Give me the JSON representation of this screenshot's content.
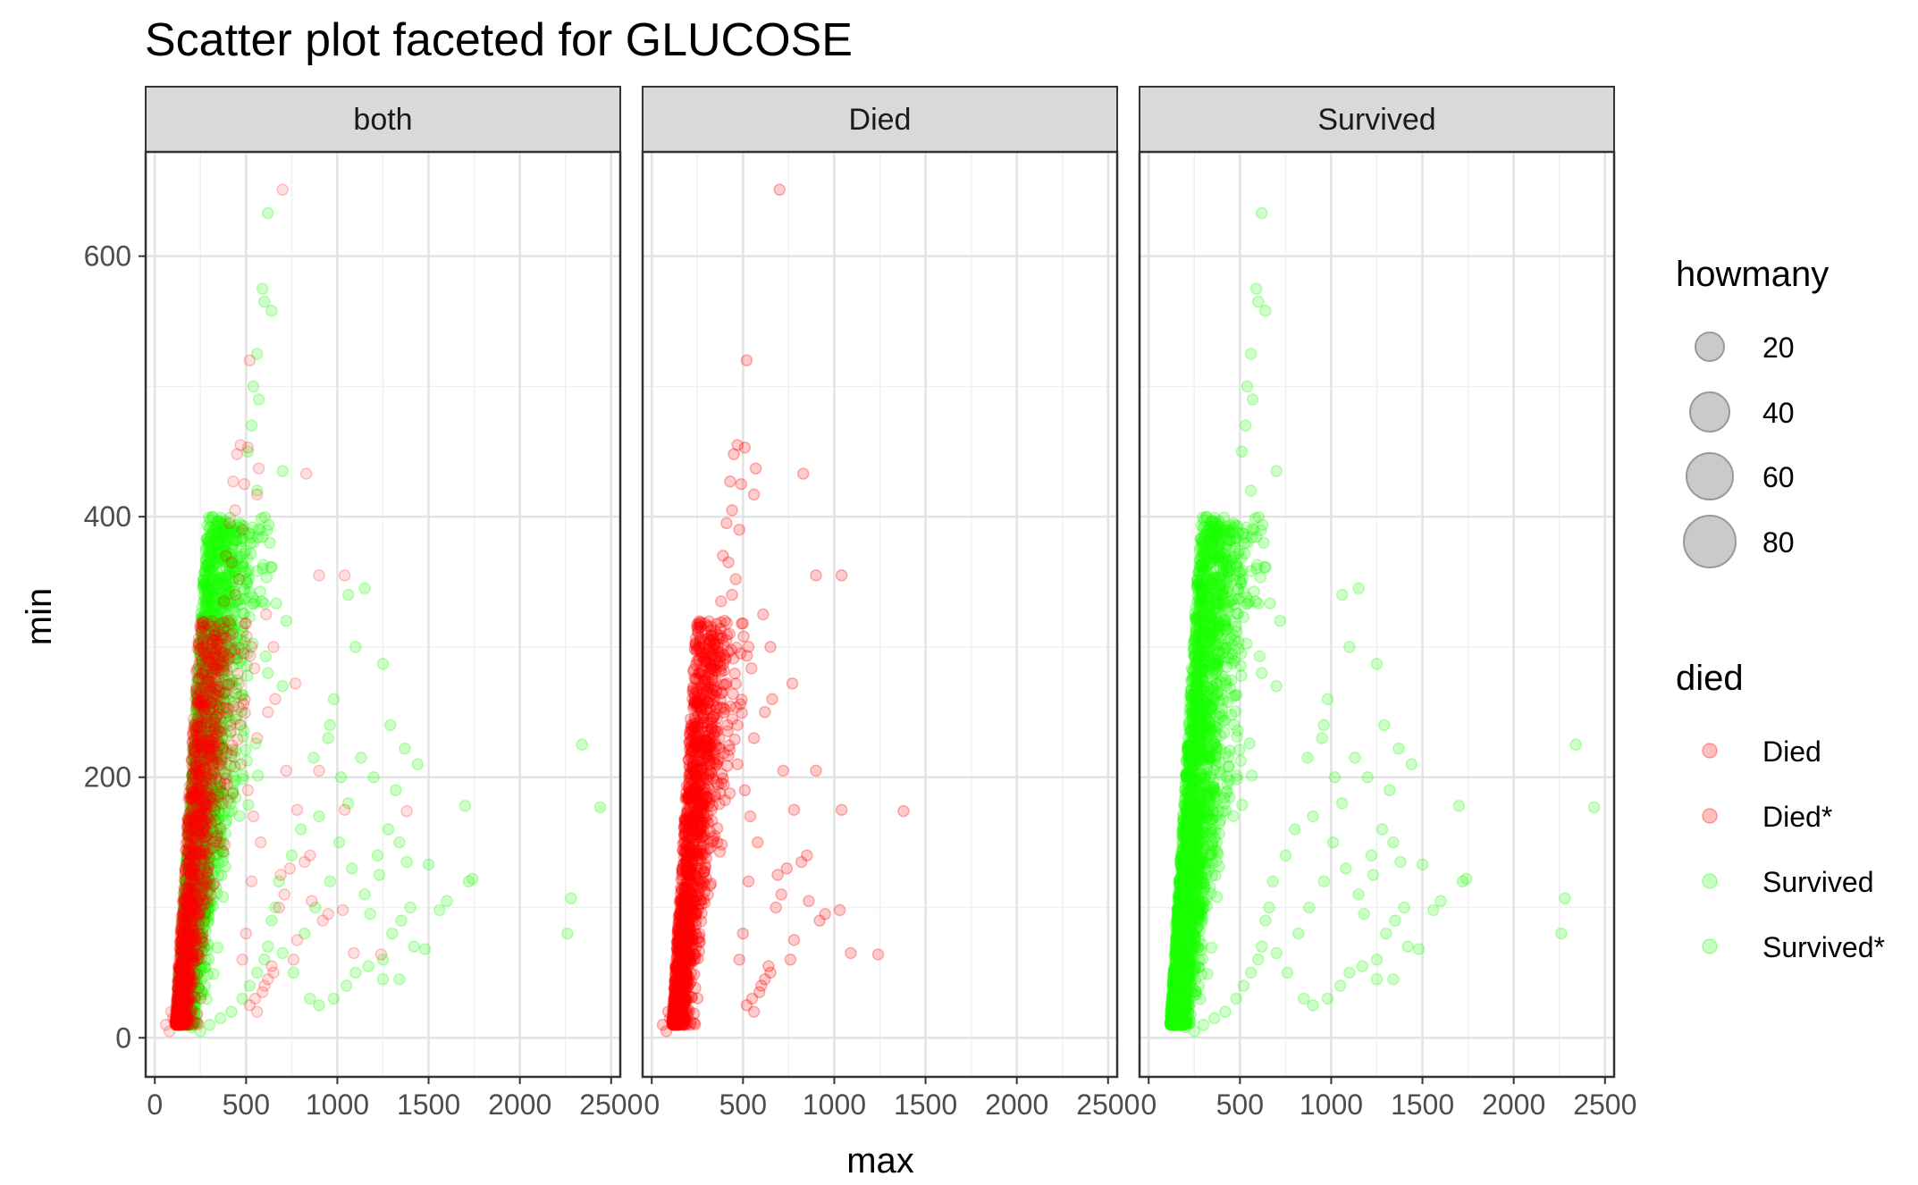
{
  "chart_data": {
    "type": "scatter",
    "title": "Scatter plot faceted for GLUCOSE",
    "xlabel": "max",
    "ylabel": "min",
    "xlim": [
      -50,
      2550
    ],
    "ylim": [
      -30,
      680
    ],
    "x_ticks": [
      0,
      500,
      1000,
      1500,
      2000,
      2500
    ],
    "x_tick_labels": [
      "0",
      "500",
      "1000",
      "1500",
      "2000",
      "2500"
    ],
    "y_ticks": [
      0,
      200,
      400,
      600
    ],
    "y_tick_labels": [
      "0",
      "200",
      "400",
      "600"
    ],
    "grid": true,
    "facets": [
      "both",
      "Died",
      "Survived"
    ],
    "legend_size": {
      "title": "howmany",
      "position": "right",
      "entries": [
        {
          "label": "20",
          "value": 20
        },
        {
          "label": "40",
          "value": 40
        },
        {
          "label": "60",
          "value": 60
        },
        {
          "label": "80",
          "value": 80
        }
      ]
    },
    "legend_color": {
      "title": "died",
      "position": "right",
      "entries": [
        {
          "label": "Died",
          "color": "#ff0000"
        },
        {
          "label": "Died*",
          "color": "#ff0000"
        },
        {
          "label": "Survived",
          "color": "#1aff00"
        },
        {
          "label": "Survived*",
          "color": "#1aff00"
        }
      ]
    },
    "series": [
      {
        "name": "Died",
        "color": "#ff0000",
        "points": [
          [
            700,
            651
          ],
          [
            520,
            520
          ],
          [
            470,
            455
          ],
          [
            510,
            453
          ],
          [
            450,
            448
          ],
          [
            570,
            437
          ],
          [
            830,
            433
          ],
          [
            430,
            427
          ],
          [
            490,
            425
          ],
          [
            560,
            417
          ],
          [
            440,
            405
          ],
          [
            410,
            395
          ],
          [
            480,
            390
          ],
          [
            900,
            355
          ],
          [
            1040,
            355
          ],
          [
            390,
            370
          ],
          [
            420,
            365
          ],
          [
            460,
            352
          ],
          [
            610,
            325
          ],
          [
            650,
            300
          ],
          [
            530,
            300
          ],
          [
            440,
            340
          ],
          [
            380,
            335
          ],
          [
            400,
            320
          ],
          [
            770,
            272
          ],
          [
            660,
            260
          ],
          [
            720,
            205
          ],
          [
            780,
            175
          ],
          [
            1040,
            175
          ],
          [
            1380,
            174
          ],
          [
            900,
            205
          ],
          [
            620,
            250
          ],
          [
            560,
            230
          ],
          [
            470,
            240
          ],
          [
            850,
            140
          ],
          [
            820,
            135
          ],
          [
            740,
            130
          ],
          [
            690,
            125
          ],
          [
            710,
            110
          ],
          [
            680,
            100
          ],
          [
            860,
            105
          ],
          [
            950,
            95
          ],
          [
            1030,
            98
          ],
          [
            920,
            90
          ],
          [
            780,
            75
          ],
          [
            760,
            60
          ],
          [
            1090,
            65
          ],
          [
            1240,
            64
          ],
          [
            640,
            55
          ],
          [
            650,
            50
          ],
          [
            600,
            40
          ],
          [
            590,
            35
          ],
          [
            550,
            30
          ],
          [
            520,
            25
          ],
          [
            560,
            20
          ],
          [
            620,
            45
          ],
          [
            480,
            60
          ],
          [
            500,
            80
          ],
          [
            530,
            120
          ],
          [
            580,
            150
          ],
          [
            540,
            170
          ],
          [
            510,
            190
          ],
          [
            470,
            210
          ],
          [
            60,
            10
          ],
          [
            80,
            5
          ],
          [
            100,
            15
          ],
          [
            120,
            25
          ],
          [
            140,
            35
          ],
          [
            90,
            20
          ]
        ],
        "dense_core": {
          "x_center": 220,
          "x_spread": 120,
          "y_range": [
            10,
            320
          ],
          "count": 1500
        }
      },
      {
        "name": "Survived",
        "color": "#1aff00",
        "points": [
          [
            620,
            633
          ],
          [
            590,
            575
          ],
          [
            600,
            565
          ],
          [
            640,
            558
          ],
          [
            560,
            525
          ],
          [
            540,
            500
          ],
          [
            570,
            490
          ],
          [
            530,
            470
          ],
          [
            510,
            450
          ],
          [
            700,
            435
          ],
          [
            560,
            420
          ],
          [
            630,
            380
          ],
          [
            1150,
            345
          ],
          [
            1060,
            340
          ],
          [
            720,
            320
          ],
          [
            1100,
            300
          ],
          [
            1250,
            287
          ],
          [
            620,
            280
          ],
          [
            700,
            270
          ],
          [
            960,
            240
          ],
          [
            950,
            230
          ],
          [
            2340,
            225
          ],
          [
            1130,
            215
          ],
          [
            1200,
            200
          ],
          [
            1290,
            240
          ],
          [
            1370,
            222
          ],
          [
            1440,
            210
          ],
          [
            1320,
            190
          ],
          [
            1700,
            178
          ],
          [
            2440,
            177
          ],
          [
            1280,
            160
          ],
          [
            1220,
            140
          ],
          [
            1340,
            150
          ],
          [
            1500,
            133
          ],
          [
            1740,
            122
          ],
          [
            1720,
            120
          ],
          [
            1600,
            105
          ],
          [
            2280,
            107
          ],
          [
            1560,
            98
          ],
          [
            1400,
            100
          ],
          [
            1350,
            90
          ],
          [
            1300,
            80
          ],
          [
            1420,
            70
          ],
          [
            1480,
            68
          ],
          [
            2260,
            80
          ],
          [
            1250,
            60
          ],
          [
            1170,
            55
          ],
          [
            1100,
            50
          ],
          [
            1340,
            45
          ],
          [
            1250,
            45
          ],
          [
            1050,
            40
          ],
          [
            980,
            30
          ],
          [
            900,
            25
          ],
          [
            850,
            30
          ],
          [
            760,
            50
          ],
          [
            700,
            65
          ],
          [
            820,
            80
          ],
          [
            880,
            100
          ],
          [
            960,
            120
          ],
          [
            1010,
            150
          ],
          [
            1060,
            180
          ],
          [
            900,
            170
          ],
          [
            800,
            160
          ],
          [
            750,
            140
          ],
          [
            680,
            120
          ],
          [
            660,
            100
          ],
          [
            640,
            90
          ],
          [
            620,
            70
          ],
          [
            600,
            60
          ],
          [
            560,
            50
          ],
          [
            520,
            40
          ],
          [
            480,
            30
          ],
          [
            420,
            20
          ],
          [
            360,
            15
          ],
          [
            300,
            10
          ],
          [
            250,
            5
          ],
          [
            200,
            8
          ],
          [
            180,
            12
          ],
          [
            980,
            260
          ],
          [
            870,
            215
          ],
          [
            1020,
            200
          ],
          [
            1080,
            130
          ],
          [
            1150,
            110
          ],
          [
            1180,
            95
          ],
          [
            1230,
            125
          ],
          [
            1380,
            135
          ]
        ],
        "dense_core": {
          "x_center": 240,
          "x_spread": 150,
          "y_range": [
            10,
            400
          ],
          "count": 2800
        }
      }
    ]
  }
}
